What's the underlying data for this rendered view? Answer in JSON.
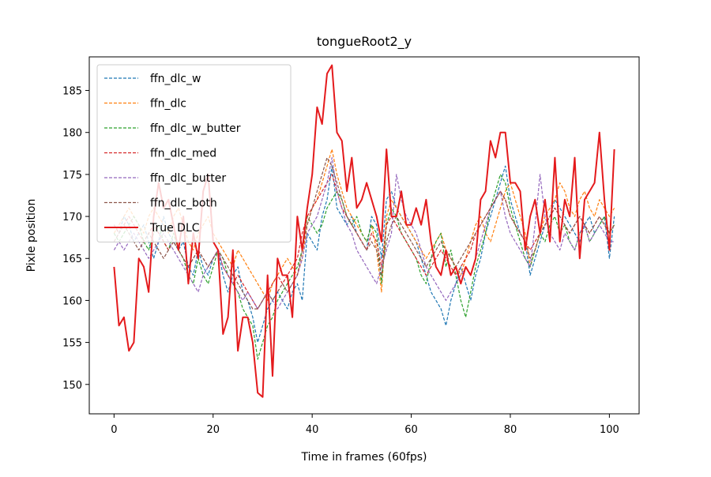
{
  "chart_data": {
    "type": "line",
    "title": "tongueRoot2_y",
    "xlabel": "Time in frames (60fps)",
    "ylabel": "Pixle position",
    "xlim": [
      -5,
      106
    ],
    "ylim": [
      146.5,
      189
    ],
    "xticks": [
      0,
      20,
      40,
      60,
      80,
      100
    ],
    "yticks": [
      150,
      155,
      160,
      165,
      170,
      175,
      180,
      185
    ],
    "grid": false,
    "legend_position": "top-left",
    "x": [
      0,
      1,
      2,
      3,
      4,
      5,
      6,
      7,
      8,
      9,
      10,
      11,
      12,
      13,
      14,
      15,
      16,
      17,
      18,
      19,
      20,
      21,
      22,
      23,
      24,
      25,
      26,
      27,
      28,
      29,
      30,
      31,
      32,
      33,
      34,
      35,
      36,
      37,
      38,
      39,
      40,
      41,
      42,
      43,
      44,
      45,
      46,
      47,
      48,
      49,
      50,
      51,
      52,
      53,
      54,
      55,
      56,
      57,
      58,
      59,
      60,
      61,
      62,
      63,
      64,
      65,
      66,
      67,
      68,
      69,
      70,
      71,
      72,
      73,
      74,
      75,
      76,
      77,
      78,
      79,
      80,
      81,
      82,
      83,
      84,
      85,
      86,
      87,
      88,
      89,
      90,
      91,
      92,
      93,
      94,
      95,
      96,
      97,
      98,
      99,
      100,
      101
    ],
    "series": [
      {
        "name": "ffn_dlc_w",
        "color": "#1f77b4",
        "style": "dashed",
        "values": [
          169,
          168,
          170,
          169,
          167,
          168,
          169,
          167,
          165,
          167,
          170,
          168,
          167,
          166,
          167,
          164,
          163,
          166,
          164,
          163,
          165,
          166,
          163,
          161,
          163,
          164,
          161,
          160,
          158,
          155,
          157,
          159,
          160,
          161,
          160,
          159,
          161,
          162,
          160,
          168,
          167,
          166,
          170,
          172,
          176,
          171,
          170,
          169,
          170,
          168,
          167,
          166,
          170,
          169,
          165,
          172,
          173,
          171,
          170,
          169,
          168,
          167,
          165,
          163,
          161,
          160,
          159,
          157,
          160,
          162,
          164,
          162,
          160,
          163,
          165,
          168,
          170,
          172,
          174,
          176,
          172,
          170,
          168,
          167,
          163,
          165,
          167,
          169,
          170,
          172,
          171,
          170,
          169,
          168,
          167,
          169,
          170,
          168,
          169,
          170,
          165,
          170
        ]
      },
      {
        "name": "ffn_dlc",
        "color": "#ff7f0e",
        "style": "dashed",
        "values": [
          168,
          169,
          170,
          171,
          170,
          169,
          168,
          170,
          171,
          170,
          169,
          168,
          170,
          171,
          169,
          167,
          166,
          168,
          169,
          170,
          168,
          167,
          166,
          165,
          164,
          166,
          165,
          164,
          163,
          162,
          161,
          160,
          162,
          163,
          164,
          165,
          164,
          163,
          165,
          169,
          171,
          172,
          174,
          176,
          178,
          175,
          173,
          171,
          170,
          169,
          168,
          167,
          169,
          166,
          161,
          170,
          172,
          171,
          170,
          169,
          168,
          167,
          166,
          165,
          166,
          167,
          168,
          166,
          165,
          164,
          163,
          165,
          167,
          169,
          170,
          168,
          167,
          169,
          171,
          173,
          174,
          172,
          170,
          168,
          164,
          166,
          168,
          170,
          171,
          172,
          174,
          173,
          171,
          170,
          172,
          173,
          171,
          170,
          172,
          171,
          170,
          171
        ]
      },
      {
        "name": "ffn_dlc_w_butter",
        "color": "#2ca02c",
        "style": "dashed",
        "values": [
          168,
          167,
          168,
          169,
          170,
          169,
          167,
          166,
          168,
          169,
          167,
          166,
          168,
          166,
          165,
          163,
          162,
          165,
          163,
          162,
          164,
          166,
          165,
          163,
          162,
          161,
          159,
          158,
          157,
          153,
          155,
          157,
          158,
          160,
          161,
          162,
          163,
          164,
          166,
          170,
          169,
          168,
          169,
          171,
          172,
          173,
          172,
          170,
          169,
          170,
          168,
          167,
          169,
          168,
          162,
          169,
          171,
          170,
          168,
          167,
          166,
          165,
          163,
          162,
          165,
          167,
          168,
          164,
          166,
          163,
          160,
          158,
          161,
          164,
          166,
          168,
          171,
          173,
          175,
          174,
          171,
          169,
          167,
          165,
          164,
          166,
          168,
          167,
          169,
          170,
          168,
          169,
          167,
          166,
          168,
          169,
          167,
          168,
          169,
          170,
          168,
          169
        ]
      },
      {
        "name": "ffn_dlc_med",
        "color": "#d62728",
        "style": "dashed",
        "values": [
          169,
          168,
          169,
          170,
          169,
          168,
          167,
          168,
          169,
          168,
          167,
          166,
          167,
          166,
          165,
          164,
          165,
          166,
          165,
          164,
          165,
          166,
          164,
          163,
          162,
          163,
          162,
          161,
          160,
          159,
          160,
          161,
          162,
          163,
          162,
          163,
          164,
          165,
          168,
          170,
          171,
          172,
          173,
          174,
          175,
          173,
          171,
          170,
          169,
          168,
          167,
          166,
          168,
          167,
          164,
          169,
          170,
          169,
          168,
          167,
          166,
          165,
          164,
          163,
          164,
          165,
          166,
          165,
          164,
          163,
          164,
          165,
          166,
          168,
          169,
          170,
          171,
          172,
          173,
          172,
          170,
          169,
          168,
          167,
          166,
          167,
          168,
          169,
          170,
          171,
          170,
          169,
          168,
          169,
          170,
          169,
          168,
          169,
          170,
          169,
          168,
          169
        ]
      },
      {
        "name": "ffn_dlc_butter",
        "color": "#9467bd",
        "style": "dashed",
        "values": [
          166,
          167,
          166,
          167,
          168,
          167,
          166,
          165,
          166,
          167,
          168,
          167,
          166,
          165,
          164,
          163,
          162,
          161,
          163,
          164,
          165,
          166,
          164,
          163,
          162,
          161,
          160,
          161,
          160,
          159,
          160,
          161,
          160,
          159,
          160,
          161,
          162,
          163,
          165,
          168,
          169,
          170,
          172,
          174,
          177,
          173,
          171,
          169,
          168,
          166,
          165,
          164,
          163,
          162,
          164,
          166,
          168,
          175,
          172,
          170,
          169,
          168,
          166,
          164,
          163,
          162,
          161,
          160,
          161,
          162,
          163,
          164,
          163,
          165,
          167,
          169,
          171,
          172,
          173,
          170,
          168,
          167,
          166,
          165,
          164,
          169,
          175,
          170,
          168,
          167,
          166,
          168,
          167,
          166,
          168,
          169,
          167,
          168,
          169,
          168,
          167,
          167
        ]
      },
      {
        "name": "ffn_dlc_both",
        "color": "#8c564b",
        "style": "dashed",
        "values": [
          167,
          168,
          169,
          168,
          167,
          166,
          167,
          168,
          167,
          166,
          165,
          166,
          167,
          166,
          165,
          164,
          165,
          166,
          165,
          164,
          165,
          166,
          165,
          164,
          163,
          162,
          161,
          160,
          159,
          159,
          160,
          161,
          160,
          161,
          162,
          161,
          162,
          163,
          166,
          169,
          171,
          173,
          175,
          177,
          176,
          174,
          172,
          170,
          169,
          168,
          167,
          166,
          167,
          166,
          163,
          167,
          169,
          170,
          169,
          168,
          167,
          166,
          165,
          164,
          165,
          166,
          167,
          166,
          165,
          164,
          165,
          166,
          167,
          168,
          169,
          170,
          171,
          172,
          173,
          172,
          170,
          169,
          168,
          167,
          165,
          166,
          168,
          169,
          170,
          171,
          170,
          169,
          168,
          169,
          170,
          169,
          168,
          169,
          170,
          169,
          168,
          169
        ]
      },
      {
        "name": "True DLC",
        "color": "#e41a1c",
        "style": "solid",
        "values": [
          164,
          157,
          158,
          154,
          155,
          165,
          164,
          161,
          170,
          174,
          171,
          172,
          169,
          166,
          170,
          162,
          168,
          165,
          173,
          175,
          167,
          166,
          156,
          158,
          166,
          154,
          158,
          158,
          155,
          149,
          148.5,
          163,
          151,
          165,
          163,
          163,
          158,
          170,
          166,
          171,
          175,
          183,
          181,
          187,
          188,
          180,
          179,
          173,
          177,
          171,
          172,
          174,
          172,
          170,
          167,
          178,
          170,
          170,
          173,
          169,
          169,
          171,
          169,
          172,
          167,
          164,
          163,
          166,
          163,
          164,
          162,
          164,
          163,
          165,
          172,
          173,
          179,
          177,
          180,
          180,
          174,
          174,
          173,
          166,
          170,
          172,
          168,
          172,
          167,
          177,
          167,
          172,
          170,
          177,
          165,
          172,
          173,
          174,
          180,
          172,
          166,
          178
        ]
      }
    ]
  }
}
